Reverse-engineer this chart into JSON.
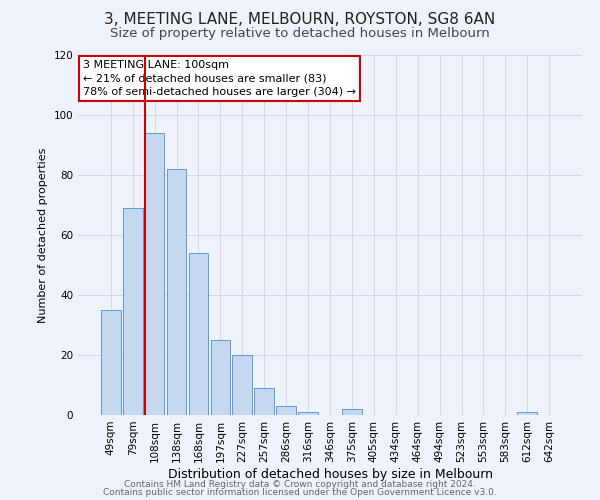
{
  "title": "3, MEETING LANE, MELBOURN, ROYSTON, SG8 6AN",
  "subtitle": "Size of property relative to detached houses in Melbourn",
  "xlabel": "Distribution of detached houses by size in Melbourn",
  "ylabel": "Number of detached properties",
  "bar_labels": [
    "49sqm",
    "79sqm",
    "108sqm",
    "138sqm",
    "168sqm",
    "197sqm",
    "227sqm",
    "257sqm",
    "286sqm",
    "316sqm",
    "346sqm",
    "375sqm",
    "405sqm",
    "434sqm",
    "464sqm",
    "494sqm",
    "523sqm",
    "553sqm",
    "583sqm",
    "612sqm",
    "642sqm"
  ],
  "bar_values": [
    35,
    69,
    94,
    82,
    54,
    25,
    20,
    9,
    3,
    1,
    0,
    2,
    0,
    0,
    0,
    0,
    0,
    0,
    0,
    1,
    0
  ],
  "bar_color": "#c5d8f0",
  "bar_edge_color": "#5b9bd5",
  "vline_index": 2,
  "vline_color": "#cc0000",
  "annotation_lines": [
    "3 MEETING LANE: 100sqm",
    "← 21% of detached houses are smaller (83)",
    "78% of semi-detached houses are larger (304) →"
  ],
  "annotation_box_color": "#ffffff",
  "annotation_box_edge": "#cc0000",
  "ylim": [
    0,
    120
  ],
  "yticks": [
    0,
    20,
    40,
    60,
    80,
    100,
    120
  ],
  "grid_color": "#d0d8e8",
  "bg_color": "#eef2fa",
  "footer_line1": "Contains HM Land Registry data © Crown copyright and database right 2024.",
  "footer_line2": "Contains public sector information licensed under the Open Government Licence v3.0.",
  "title_fontsize": 11,
  "subtitle_fontsize": 9.5,
  "xlabel_fontsize": 9,
  "ylabel_fontsize": 8,
  "annot_fontsize": 8,
  "tick_fontsize": 7.5,
  "footer_fontsize": 6.5
}
